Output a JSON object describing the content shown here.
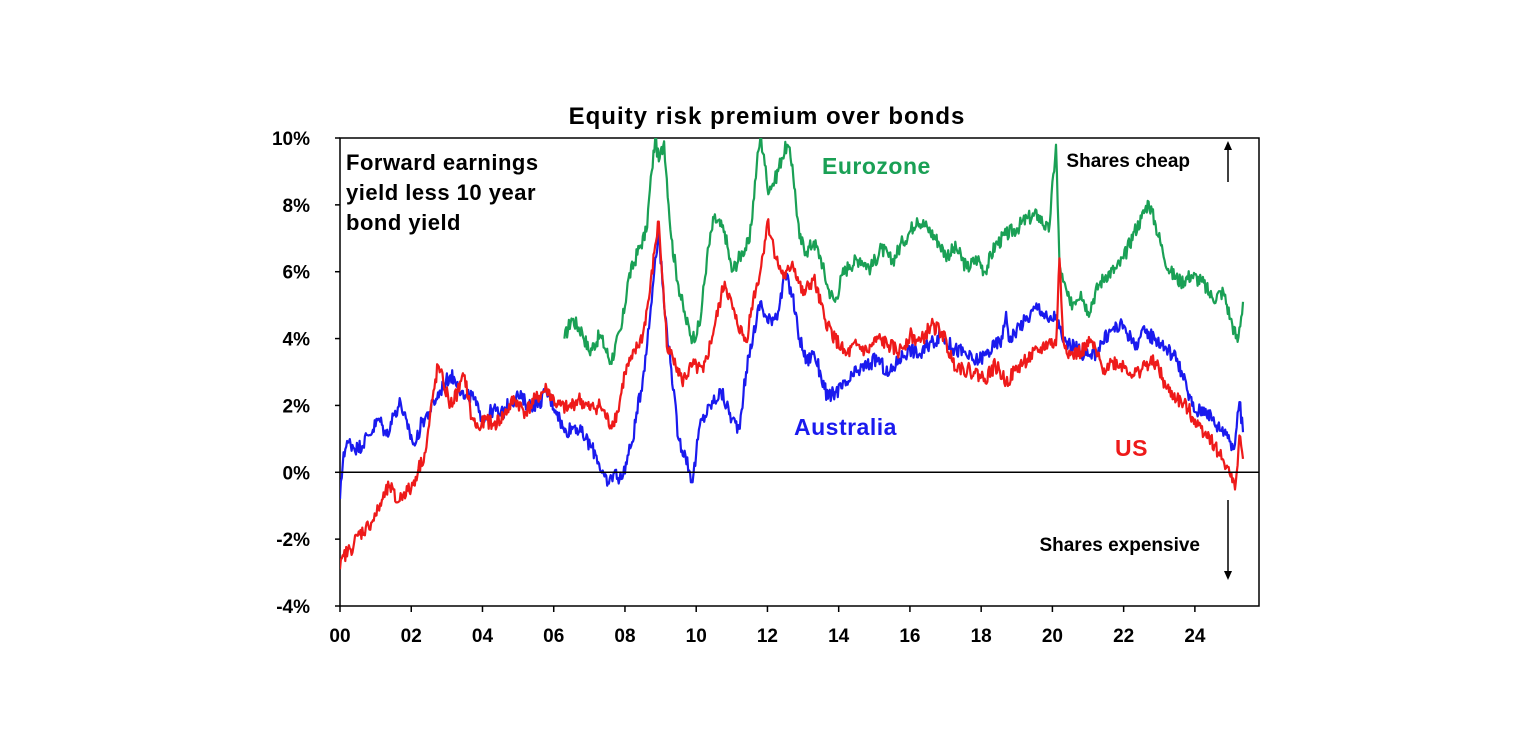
{
  "chart_data": {
    "type": "line",
    "title": "Equity risk premium over bonds",
    "annotation": "Forward earnings yield less 10 year bond yield",
    "annotation_lines": [
      "Forward earnings",
      "yield less 10 year",
      "bond yield"
    ],
    "shares_cheap": "Shares cheap",
    "shares_expensive": "Shares expensive",
    "ylim": [
      -4,
      10
    ],
    "xlim": [
      2000,
      2025.8
    ],
    "y_ticks": [
      -4,
      -2,
      0,
      2,
      4,
      6,
      8,
      10
    ],
    "y_tick_labels": [
      "-4%",
      "-2%",
      "0%",
      "2%",
      "4%",
      "6%",
      "8%",
      "10%"
    ],
    "x_ticks": [
      2000,
      2002,
      2004,
      2006,
      2008,
      2010,
      2012,
      2014,
      2016,
      2018,
      2020,
      2022,
      2024
    ],
    "x_tick_labels": [
      "00",
      "02",
      "04",
      "06",
      "08",
      "10",
      "12",
      "14",
      "16",
      "18",
      "20",
      "22",
      "24"
    ],
    "grid": false,
    "series": [
      {
        "name": "Eurozone",
        "color": "#1aa055",
        "x": [
          2006.3,
          2006.5,
          2006.8,
          2007.0,
          2007.3,
          2007.6,
          2007.9,
          2008.1,
          2008.4,
          2008.6,
          2008.75,
          2008.85,
          2008.95,
          2009.1,
          2009.3,
          2009.5,
          2009.7,
          2009.9,
          2010.1,
          2010.3,
          2010.5,
          2010.8,
          2011.0,
          2011.3,
          2011.5,
          2011.7,
          2011.8,
          2011.9,
          2012.0,
          2012.2,
          2012.4,
          2012.55,
          2012.7,
          2012.9,
          2013.1,
          2013.3,
          2013.5,
          2013.7,
          2013.9,
          2014.1,
          2014.3,
          2014.6,
          2014.9,
          2015.2,
          2015.5,
          2015.8,
          2016.0,
          2016.2,
          2016.5,
          2016.8,
          2017.0,
          2017.3,
          2017.6,
          2017.9,
          2018.1,
          2018.4,
          2018.7,
          2019.0,
          2019.3,
          2019.6,
          2019.9,
          2020.1,
          2020.2,
          2020.3,
          2020.5,
          2020.8,
          2021.0,
          2021.3,
          2021.5,
          2021.8,
          2022.0,
          2022.3,
          2022.5,
          2022.7,
          2022.9,
          2023.1,
          2023.3,
          2023.6,
          2023.9,
          2024.2,
          2024.5,
          2024.8,
          2025.0,
          2025.2,
          2025.35
        ],
        "values": [
          4.0,
          4.6,
          4.2,
          3.6,
          4.1,
          3.3,
          4.3,
          5.8,
          6.7,
          7.2,
          9.0,
          10.0,
          9.3,
          9.9,
          7.0,
          5.6,
          4.6,
          4.0,
          4.4,
          6.4,
          7.6,
          7.2,
          6.0,
          6.6,
          6.9,
          9.2,
          10.0,
          9.5,
          8.5,
          8.7,
          9.4,
          9.8,
          9.2,
          7.0,
          6.6,
          6.9,
          6.4,
          5.5,
          5.1,
          5.9,
          6.2,
          6.4,
          6.1,
          6.7,
          6.3,
          6.9,
          7.2,
          7.6,
          7.3,
          6.9,
          6.5,
          6.7,
          6.1,
          6.4,
          6.0,
          6.8,
          7.1,
          7.3,
          7.6,
          7.7,
          7.2,
          9.8,
          6.2,
          5.7,
          5.0,
          5.4,
          4.8,
          5.6,
          5.9,
          6.1,
          6.4,
          7.2,
          7.6,
          8.1,
          7.4,
          6.6,
          6.0,
          5.7,
          5.9,
          5.7,
          5.2,
          5.4,
          4.6,
          3.9,
          5.1
        ]
      },
      {
        "name": "Australia",
        "color": "#1a1aee",
        "x": [
          2000.0,
          2000.1,
          2000.25,
          2000.5,
          2000.8,
          2001.1,
          2001.3,
          2001.5,
          2001.7,
          2001.9,
          2002.1,
          2002.3,
          2002.5,
          2002.7,
          2002.9,
          2003.1,
          2003.3,
          2003.5,
          2003.7,
          2003.9,
          2004.1,
          2004.3,
          2004.5,
          2004.8,
          2005.0,
          2005.3,
          2005.6,
          2005.8,
          2006.1,
          2006.3,
          2006.6,
          2006.9,
          2007.2,
          2007.5,
          2007.7,
          2007.9,
          2008.2,
          2008.5,
          2008.7,
          2008.85,
          2008.95,
          2009.1,
          2009.3,
          2009.5,
          2009.7,
          2009.9,
          2010.1,
          2010.4,
          2010.7,
          2011.0,
          2011.2,
          2011.4,
          2011.6,
          2011.8,
          2012.0,
          2012.3,
          2012.5,
          2012.7,
          2012.9,
          2013.1,
          2013.3,
          2013.5,
          2013.7,
          2013.9,
          2014.2,
          2014.5,
          2014.8,
          2015.1,
          2015.4,
          2015.7,
          2016.0,
          2016.3,
          2016.6,
          2016.9,
          2017.2,
          2017.5,
          2017.8,
          2018.1,
          2018.4,
          2018.6,
          2018.7,
          2018.8,
          2019.0,
          2019.3,
          2019.6,
          2019.9,
          2020.1,
          2020.2,
          2020.3,
          2020.5,
          2020.8,
          2021.1,
          2021.4,
          2021.7,
          2022.0,
          2022.3,
          2022.6,
          2022.9,
          2023.2,
          2023.5,
          2023.8,
          2024.0,
          2024.3,
          2024.6,
          2024.9,
          2025.1,
          2025.25,
          2025.35
        ],
        "values": [
          -0.8,
          0.6,
          0.9,
          0.7,
          1.1,
          1.6,
          1.1,
          1.7,
          2.1,
          1.3,
          0.8,
          1.5,
          1.8,
          2.2,
          2.6,
          2.9,
          2.7,
          2.2,
          2.3,
          1.8,
          1.6,
          1.9,
          1.7,
          2.1,
          2.3,
          2.0,
          2.1,
          2.4,
          1.8,
          1.2,
          1.4,
          1.0,
          0.5,
          -0.4,
          0.0,
          -0.2,
          0.9,
          2.8,
          4.6,
          6.4,
          7.2,
          5.0,
          3.1,
          1.0,
          0.5,
          -0.3,
          1.4,
          2.0,
          2.4,
          1.6,
          1.3,
          3.0,
          4.1,
          5.1,
          4.5,
          4.8,
          5.9,
          5.3,
          4.0,
          3.3,
          3.6,
          2.9,
          2.2,
          2.4,
          2.6,
          3.0,
          3.2,
          3.4,
          2.9,
          3.4,
          3.7,
          3.5,
          3.9,
          4.1,
          3.7,
          3.6,
          3.3,
          3.5,
          3.8,
          4.0,
          4.8,
          3.9,
          4.3,
          4.6,
          5.0,
          4.5,
          4.7,
          4.3,
          3.9,
          3.8,
          3.6,
          3.4,
          3.9,
          4.3,
          4.4,
          3.8,
          4.2,
          4.0,
          3.7,
          3.4,
          2.4,
          1.8,
          1.9,
          1.4,
          1.2,
          0.7,
          2.1,
          1.2
        ]
      },
      {
        "name": "US",
        "color": "#ee1a1a",
        "x": [
          2000.0,
          2000.1,
          2000.3,
          2000.5,
          2000.8,
          2001.0,
          2001.2,
          2001.4,
          2001.6,
          2001.8,
          2002.0,
          2002.2,
          2002.4,
          2002.6,
          2002.75,
          2002.9,
          2003.1,
          2003.3,
          2003.5,
          2003.7,
          2003.9,
          2004.1,
          2004.3,
          2004.6,
          2004.9,
          2005.2,
          2005.5,
          2005.8,
          2006.1,
          2006.4,
          2006.7,
          2007.0,
          2007.3,
          2007.6,
          2007.8,
          2008.0,
          2008.2,
          2008.5,
          2008.7,
          2008.85,
          2008.95,
          2009.05,
          2009.2,
          2009.4,
          2009.6,
          2009.9,
          2010.2,
          2010.5,
          2010.8,
          2011.1,
          2011.4,
          2011.6,
          2011.8,
          2012.0,
          2012.3,
          2012.5,
          2012.7,
          2013.0,
          2013.3,
          2013.6,
          2013.9,
          2014.2,
          2014.5,
          2014.8,
          2015.1,
          2015.4,
          2015.7,
          2016.0,
          2016.3,
          2016.6,
          2016.9,
          2017.2,
          2017.5,
          2017.8,
          2018.1,
          2018.4,
          2018.7,
          2019.0,
          2019.3,
          2019.6,
          2019.9,
          2020.1,
          2020.2,
          2020.3,
          2020.5,
          2020.8,
          2021.1,
          2021.4,
          2021.7,
          2022.0,
          2022.3,
          2022.6,
          2022.9,
          2023.2,
          2023.5,
          2023.8,
          2024.1,
          2024.4,
          2024.7,
          2024.9,
          2025.05,
          2025.15,
          2025.25,
          2025.35
        ],
        "values": [
          -2.9,
          -2.5,
          -2.3,
          -1.9,
          -1.6,
          -1.3,
          -0.8,
          -0.4,
          -0.9,
          -0.6,
          -0.5,
          0.1,
          0.6,
          2.2,
          3.2,
          2.7,
          2.0,
          2.4,
          2.9,
          1.6,
          1.3,
          1.6,
          1.4,
          1.7,
          2.2,
          1.8,
          2.2,
          2.5,
          2.0,
          1.9,
          2.2,
          1.9,
          2.0,
          1.4,
          1.8,
          3.0,
          3.4,
          4.1,
          5.4,
          6.8,
          7.5,
          5.8,
          3.6,
          3.4,
          2.7,
          3.2,
          3.0,
          4.3,
          5.7,
          4.6,
          3.9,
          5.2,
          6.0,
          7.5,
          6.2,
          5.8,
          6.3,
          5.3,
          5.8,
          4.6,
          4.0,
          3.5,
          3.8,
          3.6,
          4.0,
          3.8,
          3.6,
          4.1,
          3.9,
          4.4,
          4.2,
          3.3,
          3.1,
          3.0,
          2.8,
          3.2,
          2.7,
          3.1,
          3.4,
          3.6,
          3.9,
          3.8,
          6.4,
          4.0,
          3.5,
          3.6,
          3.9,
          3.1,
          3.3,
          3.2,
          2.9,
          3.2,
          3.3,
          2.5,
          2.2,
          1.9,
          1.4,
          1.1,
          0.5,
          0.2,
          -0.3,
          -0.3,
          1.1,
          0.4
        ]
      }
    ]
  }
}
